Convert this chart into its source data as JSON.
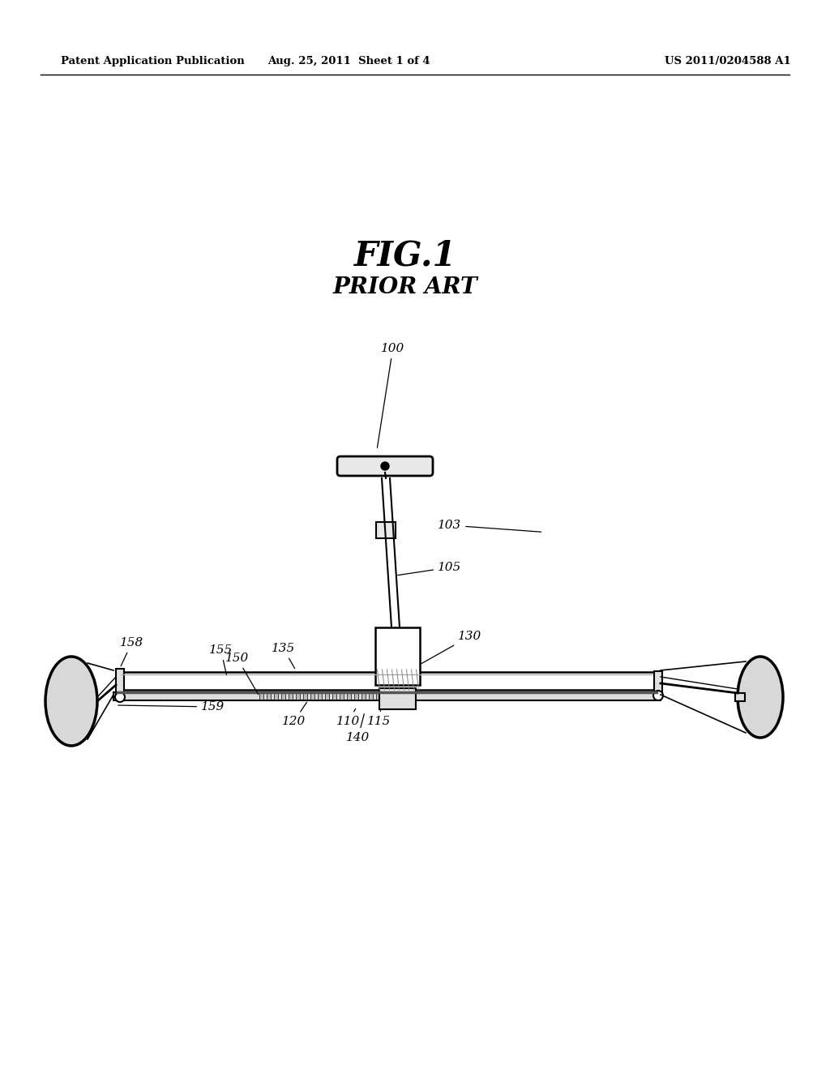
{
  "bg_color": "#ffffff",
  "header_left": "Patent Application Publication",
  "header_mid": "Aug. 25, 2011  Sheet 1 of 4",
  "header_right": "US 2011/0204588 A1",
  "fig_title": "FIG.1",
  "fig_subtitle": "PRIOR ART"
}
